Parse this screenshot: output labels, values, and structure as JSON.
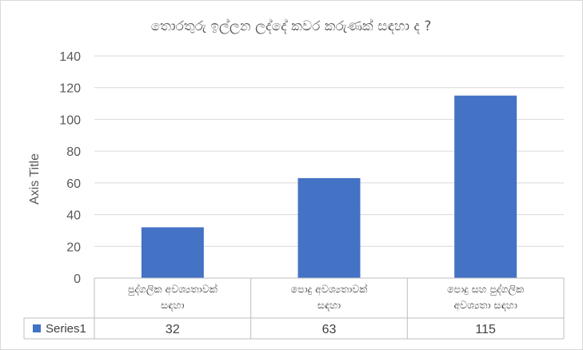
{
  "chart_data": {
    "type": "bar",
    "title": "තොරතුරු ඉල්ලන ලද්දේ කවර කරුණක් සඳහා ද ?",
    "ylabel": "Axis Title",
    "xlabel": "",
    "ylim": [
      0,
      140
    ],
    "yticks": [
      0,
      20,
      40,
      60,
      80,
      100,
      120,
      140
    ],
    "grid": true,
    "legend_placement": "data-table",
    "categories": [
      [
        "පුද්ගලික අවශ්‍යතාවක්",
        "සඳහා"
      ],
      [
        "පොදු අවශ්‍යතාවක්",
        "සඳහා"
      ],
      [
        "පොදු සහ පුද්ගලික",
        "අවශ්‍යතා සඳහා"
      ]
    ],
    "series": [
      {
        "name": "Series1",
        "values": [
          32,
          63,
          115
        ]
      }
    ],
    "colors": {
      "bar": "#4472c4"
    }
  }
}
